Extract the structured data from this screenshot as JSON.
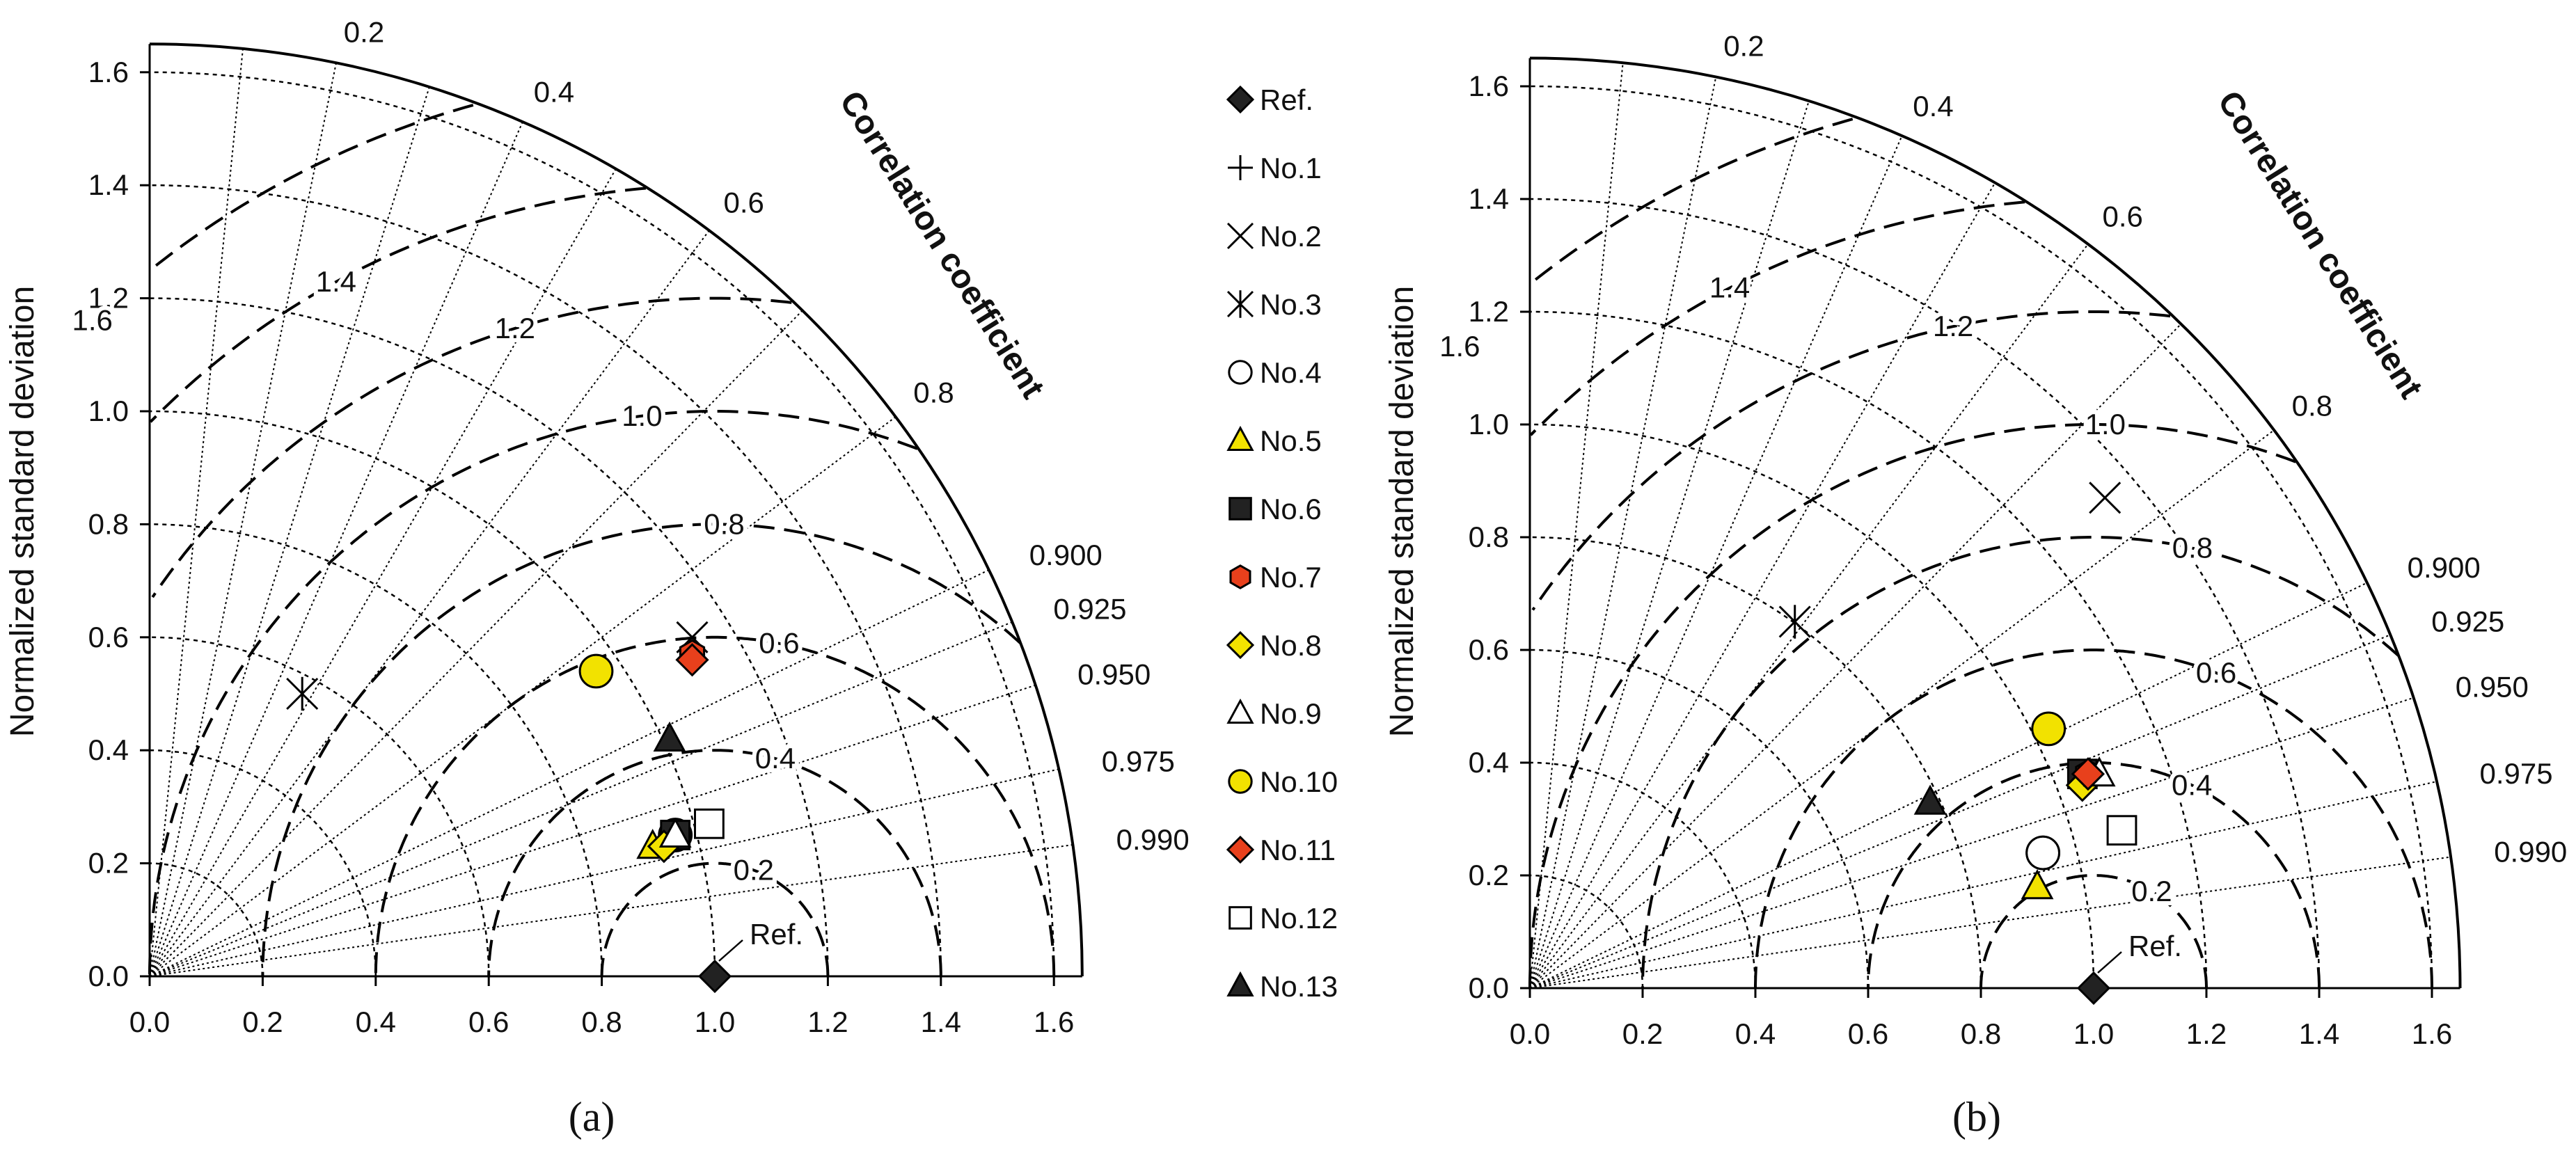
{
  "chart_data": [
    {
      "type": "scatter",
      "subtype": "taylor-diagram",
      "panel_label": "(a)",
      "ylabel": "Normalized standard deviation",
      "corr_title": "Correlation coefficient",
      "std_range": [
        0,
        1.65
      ],
      "std_ticks": [
        "0.0",
        "0.2",
        "0.4",
        "0.6",
        "0.8",
        "1.0",
        "1.2",
        "1.4",
        "1.6"
      ],
      "corr_ticks": [
        "0.2",
        "0.4",
        "0.6",
        "0.8",
        "0.900",
        "0.925",
        "0.950",
        "0.975",
        "0.990"
      ],
      "rms_labels": [
        "0.2",
        "0.4",
        "0.6",
        "0.8",
        "1.0",
        "1.2",
        "1.4",
        "1.6"
      ],
      "ref_label": "Ref.",
      "points": [
        {
          "name": "Ref.",
          "x": 1.0,
          "y": 0.0
        },
        {
          "name": "No.2",
          "x": 0.96,
          "y": 0.6
        },
        {
          "name": "No.3",
          "x": 0.27,
          "y": 0.5
        },
        {
          "name": "No.4",
          "x": 0.93,
          "y": 0.25
        },
        {
          "name": "No.5",
          "x": 0.89,
          "y": 0.23
        },
        {
          "name": "No.6",
          "x": 0.93,
          "y": 0.25
        },
        {
          "name": "No.7",
          "x": 0.96,
          "y": 0.57
        },
        {
          "name": "No.8",
          "x": 0.91,
          "y": 0.23
        },
        {
          "name": "No.9",
          "x": 0.93,
          "y": 0.25
        },
        {
          "name": "No.10",
          "x": 0.79,
          "y": 0.54
        },
        {
          "name": "No.11",
          "x": 0.96,
          "y": 0.56
        },
        {
          "name": "No.12",
          "x": 0.99,
          "y": 0.27
        },
        {
          "name": "No.13",
          "x": 0.92,
          "y": 0.42
        }
      ]
    },
    {
      "type": "scatter",
      "subtype": "taylor-diagram",
      "panel_label": "(b)",
      "ylabel": "Normalized standard deviation",
      "corr_title": "Correlation coefficient",
      "std_range": [
        0,
        1.65
      ],
      "std_ticks": [
        "0.0",
        "0.2",
        "0.4",
        "0.6",
        "0.8",
        "1.0",
        "1.2",
        "1.4",
        "1.6"
      ],
      "corr_ticks": [
        "0.2",
        "0.4",
        "0.6",
        "0.8",
        "0.900",
        "0.925",
        "0.950",
        "0.975",
        "0.990"
      ],
      "rms_labels": [
        "0.2",
        "0.4",
        "0.6",
        "0.8",
        "1.0",
        "1.2",
        "1.4",
        "1.6"
      ],
      "ref_label": "Ref.",
      "points": [
        {
          "name": "Ref.",
          "x": 1.0,
          "y": 0.0
        },
        {
          "name": "No.1",
          "x": 0.91,
          "y": 0.24
        },
        {
          "name": "No.2",
          "x": 1.02,
          "y": 0.87
        },
        {
          "name": "No.3",
          "x": 0.47,
          "y": 0.65
        },
        {
          "name": "No.4",
          "x": 0.91,
          "y": 0.24
        },
        {
          "name": "No.5",
          "x": 0.9,
          "y": 0.18
        },
        {
          "name": "No.6",
          "x": 0.98,
          "y": 0.38
        },
        {
          "name": "No.7",
          "x": 0.99,
          "y": 0.38
        },
        {
          "name": "No.8",
          "x": 0.98,
          "y": 0.36
        },
        {
          "name": "No.9",
          "x": 1.01,
          "y": 0.38
        },
        {
          "name": "No.10",
          "x": 0.92,
          "y": 0.46
        },
        {
          "name": "No.11",
          "x": 0.99,
          "y": 0.38
        },
        {
          "name": "No.12",
          "x": 1.05,
          "y": 0.28
        },
        {
          "name": "No.13",
          "x": 0.71,
          "y": 0.33
        }
      ]
    }
  ],
  "legend": {
    "items": [
      {
        "name": "Ref.",
        "marker": "diamond",
        "fill": "#222222"
      },
      {
        "name": "No.1",
        "marker": "plus",
        "fill": "none"
      },
      {
        "name": "No.2",
        "marker": "cross",
        "fill": "none"
      },
      {
        "name": "No.3",
        "marker": "asterisk",
        "fill": "none"
      },
      {
        "name": "No.4",
        "marker": "circle",
        "fill": "#ffffff"
      },
      {
        "name": "No.5",
        "marker": "triangle",
        "fill": "#f2e200"
      },
      {
        "name": "No.6",
        "marker": "square",
        "fill": "#222222"
      },
      {
        "name": "No.7",
        "marker": "hexagon",
        "fill": "#e8401c"
      },
      {
        "name": "No.8",
        "marker": "diamond",
        "fill": "#f2e200"
      },
      {
        "name": "No.9",
        "marker": "triangle",
        "fill": "#ffffff"
      },
      {
        "name": "No.10",
        "marker": "circle",
        "fill": "#f2e200"
      },
      {
        "name": "No.11",
        "marker": "diamond",
        "fill": "#e8401c"
      },
      {
        "name": "No.12",
        "marker": "square",
        "fill": "#ffffff"
      },
      {
        "name": "No.13",
        "marker": "triangle",
        "fill": "#222222"
      }
    ]
  }
}
